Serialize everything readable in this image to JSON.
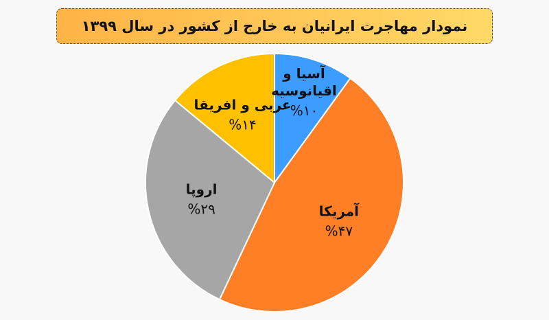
{
  "chart_data": {
    "type": "pie",
    "title": "نمودار مهاجرت ایرانیان به خارج از کشور در سال ۱۳۹۹",
    "categories": [
      "آسیا و اقیانوسیه",
      "آمریکا",
      "اروپا",
      "عربی و افریقا"
    ],
    "values": [
      10,
      47,
      29,
      14
    ],
    "value_labels": [
      "%۱۰",
      "%۴۷",
      "%۲۹",
      "%۱۴"
    ],
    "colors": [
      "#3d9cff",
      "#ff7f27",
      "#a6a6a6",
      "#ffc000"
    ]
  }
}
